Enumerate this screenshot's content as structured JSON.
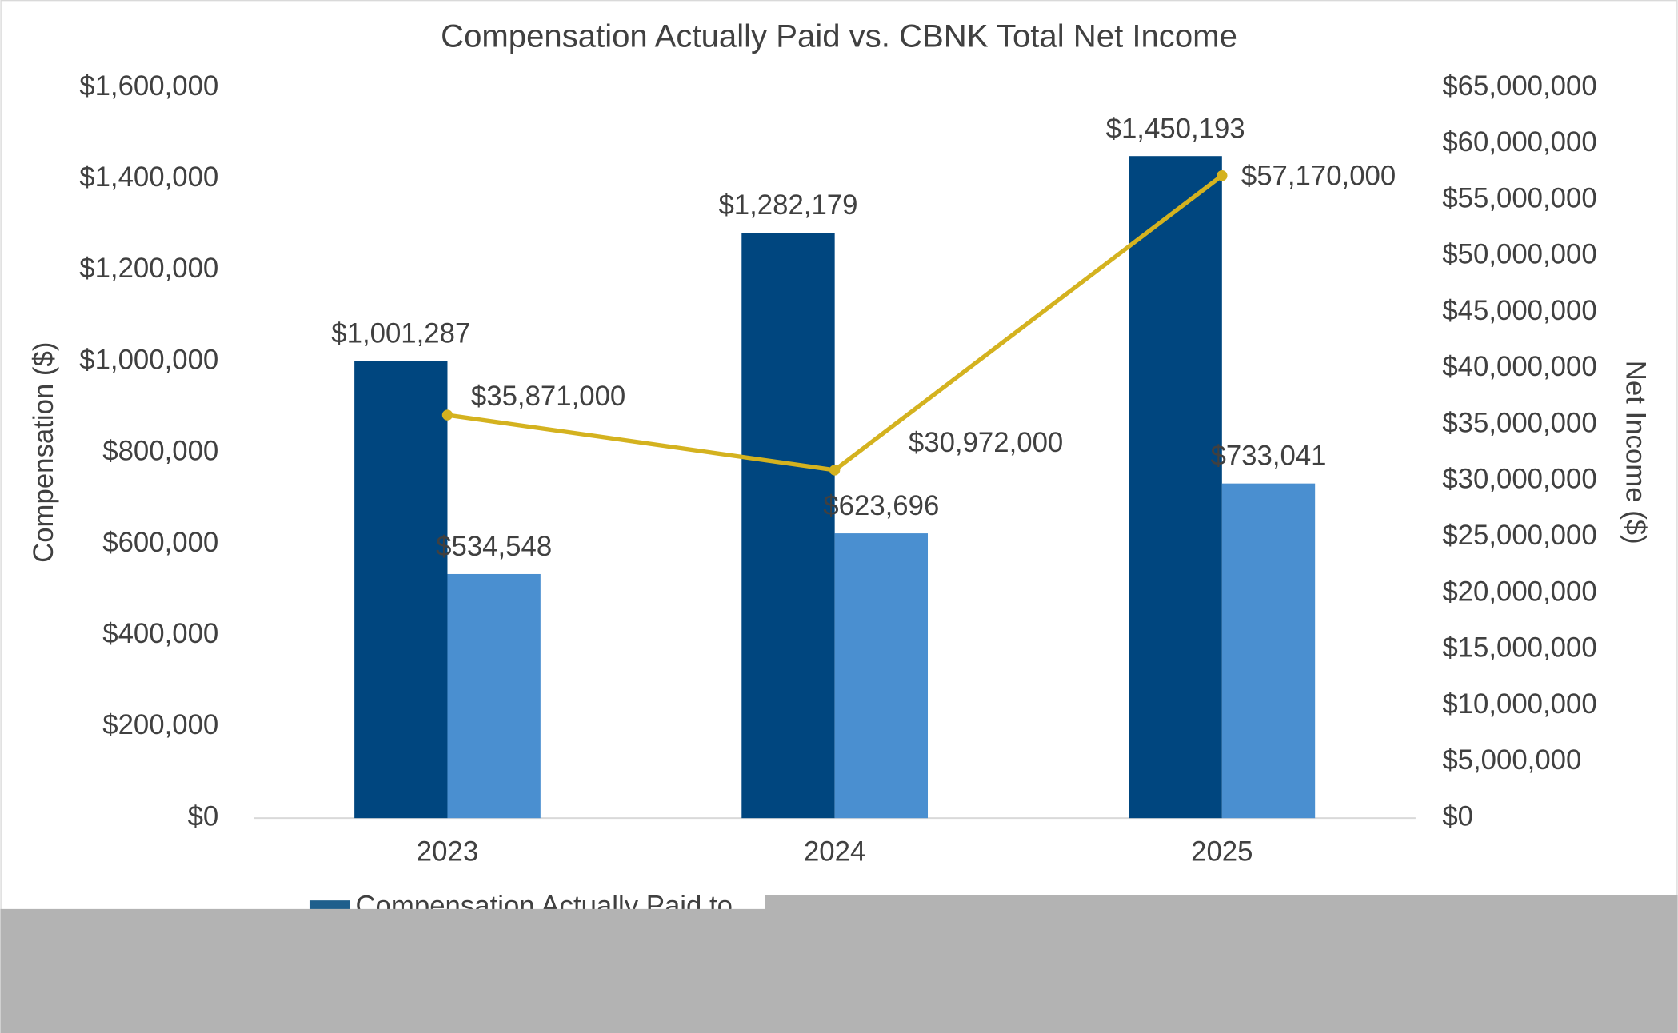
{
  "chart_data": {
    "type": "bar",
    "title": "Compensation Actually Paid vs. CBNK Total Net Income",
    "y_axis_label": "Compensation ($)",
    "y2_axis_label": "Net Income ($)",
    "categories": [
      "2023",
      "2024",
      "2025"
    ],
    "series": [
      {
        "name": "Compensation Actually Paid to",
        "type": "bar",
        "color": "#00467f",
        "legend_color": "#1f5f8c",
        "values": [
          1001287,
          1282179,
          1450193
        ],
        "value_labels": [
          "$1,001,287",
          "$1,282,179",
          "$1,450,193"
        ]
      },
      {
        "type": "bar",
        "color": "#4a8fd0",
        "values": [
          534548,
          623696,
          733041
        ],
        "value_labels": [
          "$534,548",
          "$623,696",
          "$733,041"
        ]
      },
      {
        "type": "line",
        "axis": "y2",
        "color": "#d4b21f",
        "values": [
          35871000,
          30972000,
          57170000
        ],
        "value_labels": [
          "$35,871,000",
          "$30,972,000",
          "$57,170,000"
        ]
      }
    ],
    "ylim": [
      0,
      1600000
    ],
    "yticks": [
      {
        "value": 0,
        "label": "$0"
      },
      {
        "value": 200000,
        "label": "$200,000"
      },
      {
        "value": 400000,
        "label": "$400,000"
      },
      {
        "value": 600000,
        "label": "$600,000"
      },
      {
        "value": 800000,
        "label": "$800,000"
      },
      {
        "value": 1000000,
        "label": "$1,000,000"
      },
      {
        "value": 1200000,
        "label": "$1,200,000"
      },
      {
        "value": 1400000,
        "label": "$1,400,000"
      },
      {
        "value": 1600000,
        "label": "$1,600,000"
      }
    ],
    "y2lim": [
      0,
      65000000
    ],
    "y2ticks": [
      {
        "value": 0,
        "label": "$0"
      },
      {
        "value": 5000000,
        "label": "$5,000,000"
      },
      {
        "value": 10000000,
        "label": "$10,000,000"
      },
      {
        "value": 15000000,
        "label": "$15,000,000"
      },
      {
        "value": 20000000,
        "label": "$20,000,000"
      },
      {
        "value": 25000000,
        "label": "$25,000,000"
      },
      {
        "value": 30000000,
        "label": "$30,000,000"
      },
      {
        "value": 35000000,
        "label": "$35,000,000"
      },
      {
        "value": 40000000,
        "label": "$40,000,000"
      },
      {
        "value": 45000000,
        "label": "$45,000,000"
      },
      {
        "value": 50000000,
        "label": "$50,000,000"
      },
      {
        "value": 55000000,
        "label": "$55,000,000"
      },
      {
        "value": 60000000,
        "label": "$60,000,000"
      },
      {
        "value": 65000000,
        "label": "$65,000,000"
      }
    ],
    "grid": false
  }
}
